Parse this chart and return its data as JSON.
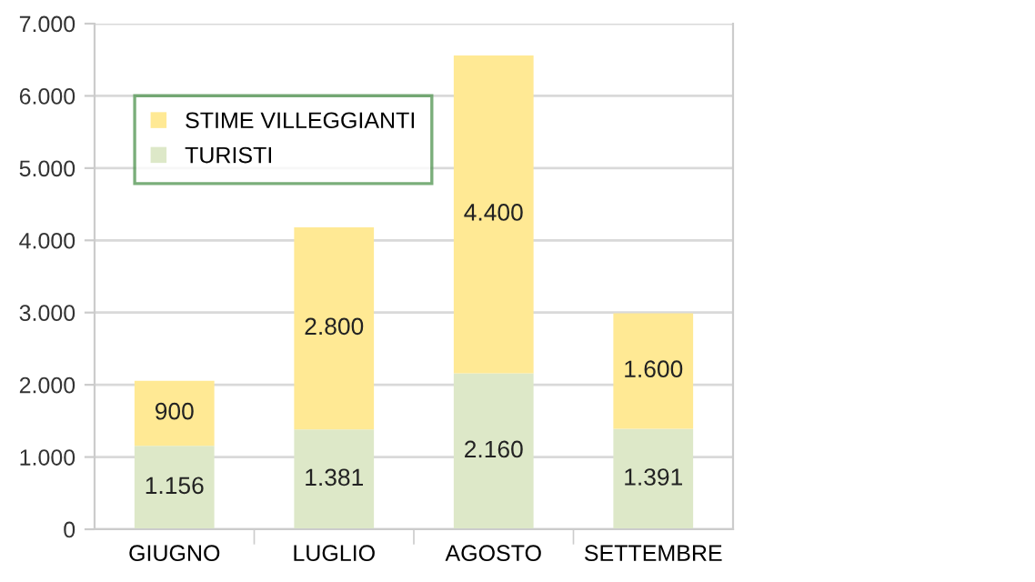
{
  "chart_data": {
    "type": "bar",
    "stacked": true,
    "categories": [
      "GIUGNO",
      "LUGLIO",
      "AGOSTO",
      "SETTEMBRE"
    ],
    "series": [
      {
        "name": "TURISTI",
        "color": "#dde8c8",
        "values": [
          1156,
          1381,
          2160,
          1391
        ],
        "value_labels": [
          "1.156",
          "1.381",
          "2.160",
          "1.391"
        ]
      },
      {
        "name": "STIME VILLEGGIANTI",
        "color": "#ffe994",
        "values": [
          900,
          2800,
          4400,
          1600
        ],
        "value_labels": [
          "900",
          "2.800",
          "4.400",
          "1.600"
        ]
      }
    ],
    "ylim": [
      0,
      7000
    ],
    "yticks": [
      {
        "value": 0,
        "label": "0"
      },
      {
        "value": 1000,
        "label": "1.000"
      },
      {
        "value": 2000,
        "label": "2.000"
      },
      {
        "value": 3000,
        "label": "3.000"
      },
      {
        "value": 4000,
        "label": "4.000"
      },
      {
        "value": 5000,
        "label": "5.000"
      },
      {
        "value": 6000,
        "label": "6.000"
      },
      {
        "value": 7000,
        "label": "7.000"
      }
    ],
    "grid": "y",
    "legend": "top left"
  }
}
